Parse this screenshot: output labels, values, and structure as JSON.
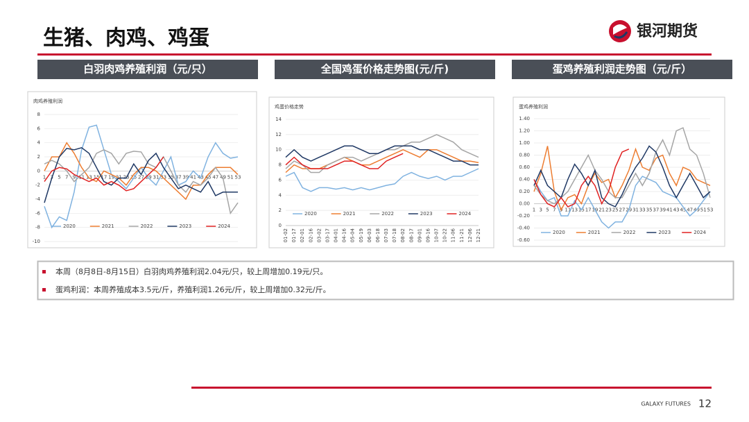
{
  "header": {
    "title": "生猪、肉鸡、鸡蛋",
    "logo": "银河期货"
  },
  "panels": [
    "白羽肉鸡养殖利润（元/只）",
    "全国鸡蛋价格走势图(元/斤)",
    "蛋鸡养殖利润走势图（元/斤）"
  ],
  "chart_data": [
    {
      "type": "line",
      "title": "肉鸡养殖利润",
      "categories": [
        1,
        3,
        5,
        7,
        9,
        11,
        13,
        15,
        17,
        19,
        21,
        23,
        25,
        27,
        29,
        31,
        33,
        35,
        37,
        39,
        41,
        43,
        45,
        47,
        49,
        51,
        53
      ],
      "ylim": [
        -10,
        8
      ],
      "yticks": [
        -10,
        -8,
        -6,
        -4,
        -2,
        0,
        2,
        4,
        6,
        8
      ],
      "x_axis_at_zero": true,
      "grid": true,
      "legend": "bottom",
      "series": [
        {
          "name": "2020",
          "color": "#7fb2e0",
          "values": [
            -5,
            -8,
            -6.5,
            -7,
            -3,
            3,
            6.2,
            6.5,
            3,
            -0.5,
            -1.5,
            -2.5,
            -1,
            0.5,
            -1,
            -2,
            0,
            2,
            -2,
            -1.5,
            0,
            -1,
            2,
            4,
            2.5,
            1.8,
            2
          ]
        },
        {
          "name": "2021",
          "color": "#ed7d31",
          "values": [
            0,
            2,
            2,
            4,
            2.5,
            0.5,
            -1,
            -1.5,
            0,
            -0.5,
            -1,
            -2,
            -0.5,
            0.5,
            0.5,
            0,
            -1,
            -2,
            -3,
            -4,
            -2,
            -2,
            -0.5,
            0.5,
            0.5,
            0.5,
            -0.5
          ]
        },
        {
          "name": "2022",
          "color": "#a5a5a5",
          "values": [
            1,
            1.5,
            1,
            0,
            -1.5,
            -0.5,
            0.5,
            2.5,
            3,
            2.5,
            1,
            2.5,
            2.8,
            2.7,
            1,
            0.5,
            2,
            0,
            -2,
            -3,
            -1.5,
            -2,
            -1,
            0.5,
            -1,
            -6,
            -4.5
          ]
        },
        {
          "name": "2023",
          "color": "#1f3864",
          "values": [
            -4.5,
            -1,
            2,
            3.2,
            3,
            3.3,
            2.5,
            0.5,
            -1.5,
            -2,
            -1,
            -1,
            1,
            -0.5,
            1.5,
            2.5,
            0.5,
            -1,
            -2.5,
            -2,
            -2.5,
            -3,
            -1.5,
            -3.5,
            -3,
            -3,
            -3
          ]
        },
        {
          "name": "2024",
          "color": "#e02020",
          "values": [
            -1.5,
            0,
            0.5,
            0.3,
            -0.5,
            -1,
            -1.5,
            -1,
            -2,
            -1.5,
            -2,
            -2.8,
            -2.5,
            -1.5,
            -0.5,
            0.5,
            2,
            null,
            null,
            null,
            null,
            null,
            null,
            null,
            null,
            null,
            null
          ]
        }
      ]
    },
    {
      "type": "line",
      "title": "鸡蛋价格走势",
      "categories": [
        "01-02",
        "01-17",
        "02-01",
        "02-16",
        "03-02",
        "03-17",
        "04-01",
        "04-16",
        "05-04",
        "05-19",
        "06-03",
        "06-18",
        "07-03",
        "07-18",
        "08-02",
        "08-17",
        "09-01",
        "09-16",
        "10-07",
        "10-22",
        "11-06",
        "11-21",
        "12-06",
        "12-21"
      ],
      "ylim": [
        0,
        14
      ],
      "yticks": [
        0,
        2,
        4,
        6,
        8,
        10,
        12,
        14
      ],
      "x_axis_at_zero": false,
      "grid": true,
      "legend": "bottom",
      "series": [
        {
          "name": "2020",
          "color": "#7fb2e0",
          "values": [
            6.5,
            7,
            5,
            4.5,
            5,
            5,
            4.8,
            5,
            4.7,
            5,
            4.7,
            5,
            5.3,
            5.5,
            6.5,
            7,
            6.5,
            6.2,
            6.5,
            6,
            6.5,
            6.5,
            7,
            7.5
          ]
        },
        {
          "name": "2021",
          "color": "#ed7d31",
          "values": [
            7,
            8,
            7.5,
            7.5,
            7.5,
            8,
            8.5,
            9,
            8.5,
            8,
            8,
            8.5,
            9,
            9.5,
            10,
            9.5,
            9,
            10,
            10,
            9.5,
            9,
            8.5,
            8.5,
            8.3
          ]
        },
        {
          "name": "2022",
          "color": "#a5a5a5",
          "values": [
            7.5,
            8.5,
            8,
            7,
            7,
            8,
            8.5,
            9,
            9,
            8.5,
            9,
            9.5,
            10,
            10,
            10.5,
            11,
            11,
            11.5,
            12,
            11.5,
            11,
            10,
            9.5,
            9
          ]
        },
        {
          "name": "2023",
          "color": "#1f3864",
          "values": [
            9,
            10,
            9,
            8.5,
            9,
            9.5,
            10,
            10.5,
            10.5,
            10,
            9.5,
            9.5,
            10,
            10.5,
            10.5,
            10.5,
            10,
            10,
            9.5,
            9,
            8.5,
            8.5,
            8,
            8
          ]
        },
        {
          "name": "2024",
          "color": "#e02020",
          "values": [
            8,
            9,
            8,
            7.5,
            7.5,
            7.5,
            8,
            8.5,
            8.5,
            8,
            7.5,
            7.5,
            8.5,
            9,
            9.5,
            null,
            null,
            null,
            null,
            null,
            null,
            null,
            null,
            null
          ]
        }
      ]
    },
    {
      "type": "line",
      "title": "蛋鸡养殖利润",
      "categories": [
        1,
        3,
        5,
        7,
        9,
        11,
        13,
        15,
        17,
        19,
        21,
        23,
        25,
        27,
        29,
        31,
        33,
        35,
        37,
        39,
        41,
        43,
        45,
        47,
        49,
        51,
        53
      ],
      "ylim": [
        -0.6,
        1.4
      ],
      "yticks": [
        {
          "value": -0.6,
          "label": "-0.60"
        },
        {
          "value": -0.4,
          "label": "-0.40"
        },
        {
          "value": -0.2,
          "label": "-0.20"
        },
        {
          "value": 0,
          "label": "0.00"
        },
        {
          "value": 0.2,
          "label": "0.20"
        },
        {
          "value": 0.4,
          "label": "0.40"
        },
        {
          "value": 0.6,
          "label": "0.60"
        },
        {
          "value": 0.8,
          "label": "0.80"
        },
        {
          "value": 1,
          "label": "1.00"
        },
        {
          "value": 1.2,
          "label": "1.20"
        },
        {
          "value": 1.4,
          "label": "1.40"
        }
      ],
      "x_axis_at_zero": true,
      "grid": true,
      "legend": "bottom",
      "series": [
        {
          "name": "2020",
          "color": "#7fb2e0",
          "values": [
            0.4,
            0.2,
            0.05,
            0.1,
            -0.2,
            -0.2,
            0.05,
            -0.1,
            0.1,
            -0.1,
            -0.3,
            -0.4,
            -0.3,
            -0.3,
            -0.1,
            0.3,
            0.45,
            0.4,
            0.35,
            0.2,
            0.15,
            0.1,
            -0.05,
            -0.2,
            -0.1,
            0.05,
            0.2
          ]
        },
        {
          "name": "2021",
          "color": "#ed7d31",
          "values": [
            0.2,
            0.5,
            0.95,
            0.2,
            -0.1,
            0.1,
            0.15,
            0,
            0.3,
            0.5,
            0.35,
            0.4,
            0.1,
            0.3,
            0.55,
            0.9,
            0.6,
            0.55,
            0.75,
            0.8,
            0.5,
            0.3,
            0.6,
            0.55,
            0.4,
            0.35,
            0.3
          ]
        },
        {
          "name": "2022",
          "color": "#a5a5a5",
          "values": [
            0.3,
            0.15,
            0.05,
            0,
            0.1,
            0.2,
            0.4,
            0.6,
            0.8,
            0.55,
            0.4,
            0.2,
            0.1,
            0.1,
            0.3,
            0.5,
            0.3,
            0.5,
            0.85,
            1.05,
            0.8,
            1.2,
            1.25,
            0.9,
            0.8,
            0.5,
            0.1
          ]
        },
        {
          "name": "2023",
          "color": "#1f3864",
          "values": [
            0.3,
            0.55,
            0.3,
            0.2,
            0.1,
            0.4,
            0.65,
            0.5,
            0.3,
            0.55,
            0.1,
            0,
            -0.05,
            0.15,
            0.4,
            0.6,
            0.75,
            0.95,
            0.85,
            0.6,
            0.3,
            0.1,
            0.3,
            0.5,
            0.3,
            0.1,
            0.2
          ]
        },
        {
          "name": "2024",
          "color": "#e02020",
          "values": [
            0.4,
            0.15,
            0,
            -0.05,
            0.1,
            -0.05,
            0,
            0.3,
            0.45,
            0.3,
            0,
            0.2,
            0.6,
            0.85,
            0.9,
            null,
            null,
            null,
            null,
            null,
            null,
            null,
            null,
            null,
            null,
            null,
            null
          ]
        }
      ]
    }
  ],
  "notes": [
    "本周（8月8日-8月15日）白羽肉鸡养殖利润2.04元/只，较上周增加0.19元/只。",
    "蛋鸡利润：本周养殖成本3.5元/斤，养殖利润1.26元/斤，较上周增加0.32元/斤。"
  ],
  "footer": {
    "brand": "GALAXY FUTURES",
    "page": 12
  }
}
